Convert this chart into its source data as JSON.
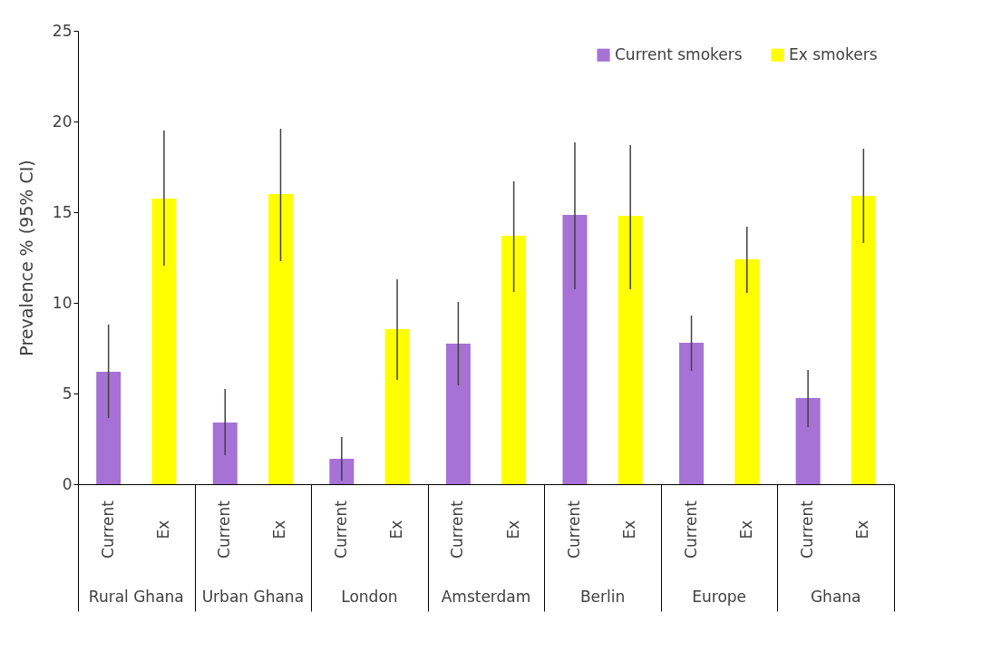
{
  "chart_data": {
    "type": "bar",
    "ylabel": "Prevalence % (95% CI)",
    "categories": [
      "Rural Ghana",
      "Urban Ghana",
      "London",
      "Amsterdam",
      "Berlin",
      "Europe",
      "Ghana"
    ],
    "series": [
      {
        "name": "Current smokers",
        "color": "#a672d6",
        "values": [
          6.2,
          3.4,
          1.4,
          7.75,
          14.85,
          7.8,
          4.75
        ],
        "errors": [
          [
            3.65,
            8.8
          ],
          [
            1.6,
            5.25
          ],
          [
            0.2,
            2.6
          ],
          [
            5.45,
            10.05
          ],
          [
            10.75,
            18.85
          ],
          [
            6.25,
            9.3
          ],
          [
            3.15,
            6.3
          ]
        ]
      },
      {
        "name": "Ex smokers",
        "color": "#ffff00",
        "values": [
          15.75,
          16.0,
          8.55,
          13.7,
          14.8,
          12.4,
          15.9
        ],
        "errors": [
          [
            12.05,
            19.5
          ],
          [
            12.3,
            19.6
          ],
          [
            5.75,
            11.3
          ],
          [
            10.6,
            16.7
          ],
          [
            10.75,
            18.7
          ],
          [
            10.55,
            14.2
          ],
          [
            13.3,
            18.5
          ]
        ]
      }
    ],
    "annotations": [
      "Current",
      "Ex",
      "Current",
      "Ex",
      "Current",
      "Ex",
      "Current",
      "Ex",
      "Current",
      "Ex",
      "Current",
      "Ex",
      "Current",
      "Ex"
    ],
    "ylim": [
      0,
      25
    ],
    "yticks": [
      0,
      5,
      10,
      15,
      20,
      25
    ],
    "grid": false,
    "legend": "top right"
  }
}
